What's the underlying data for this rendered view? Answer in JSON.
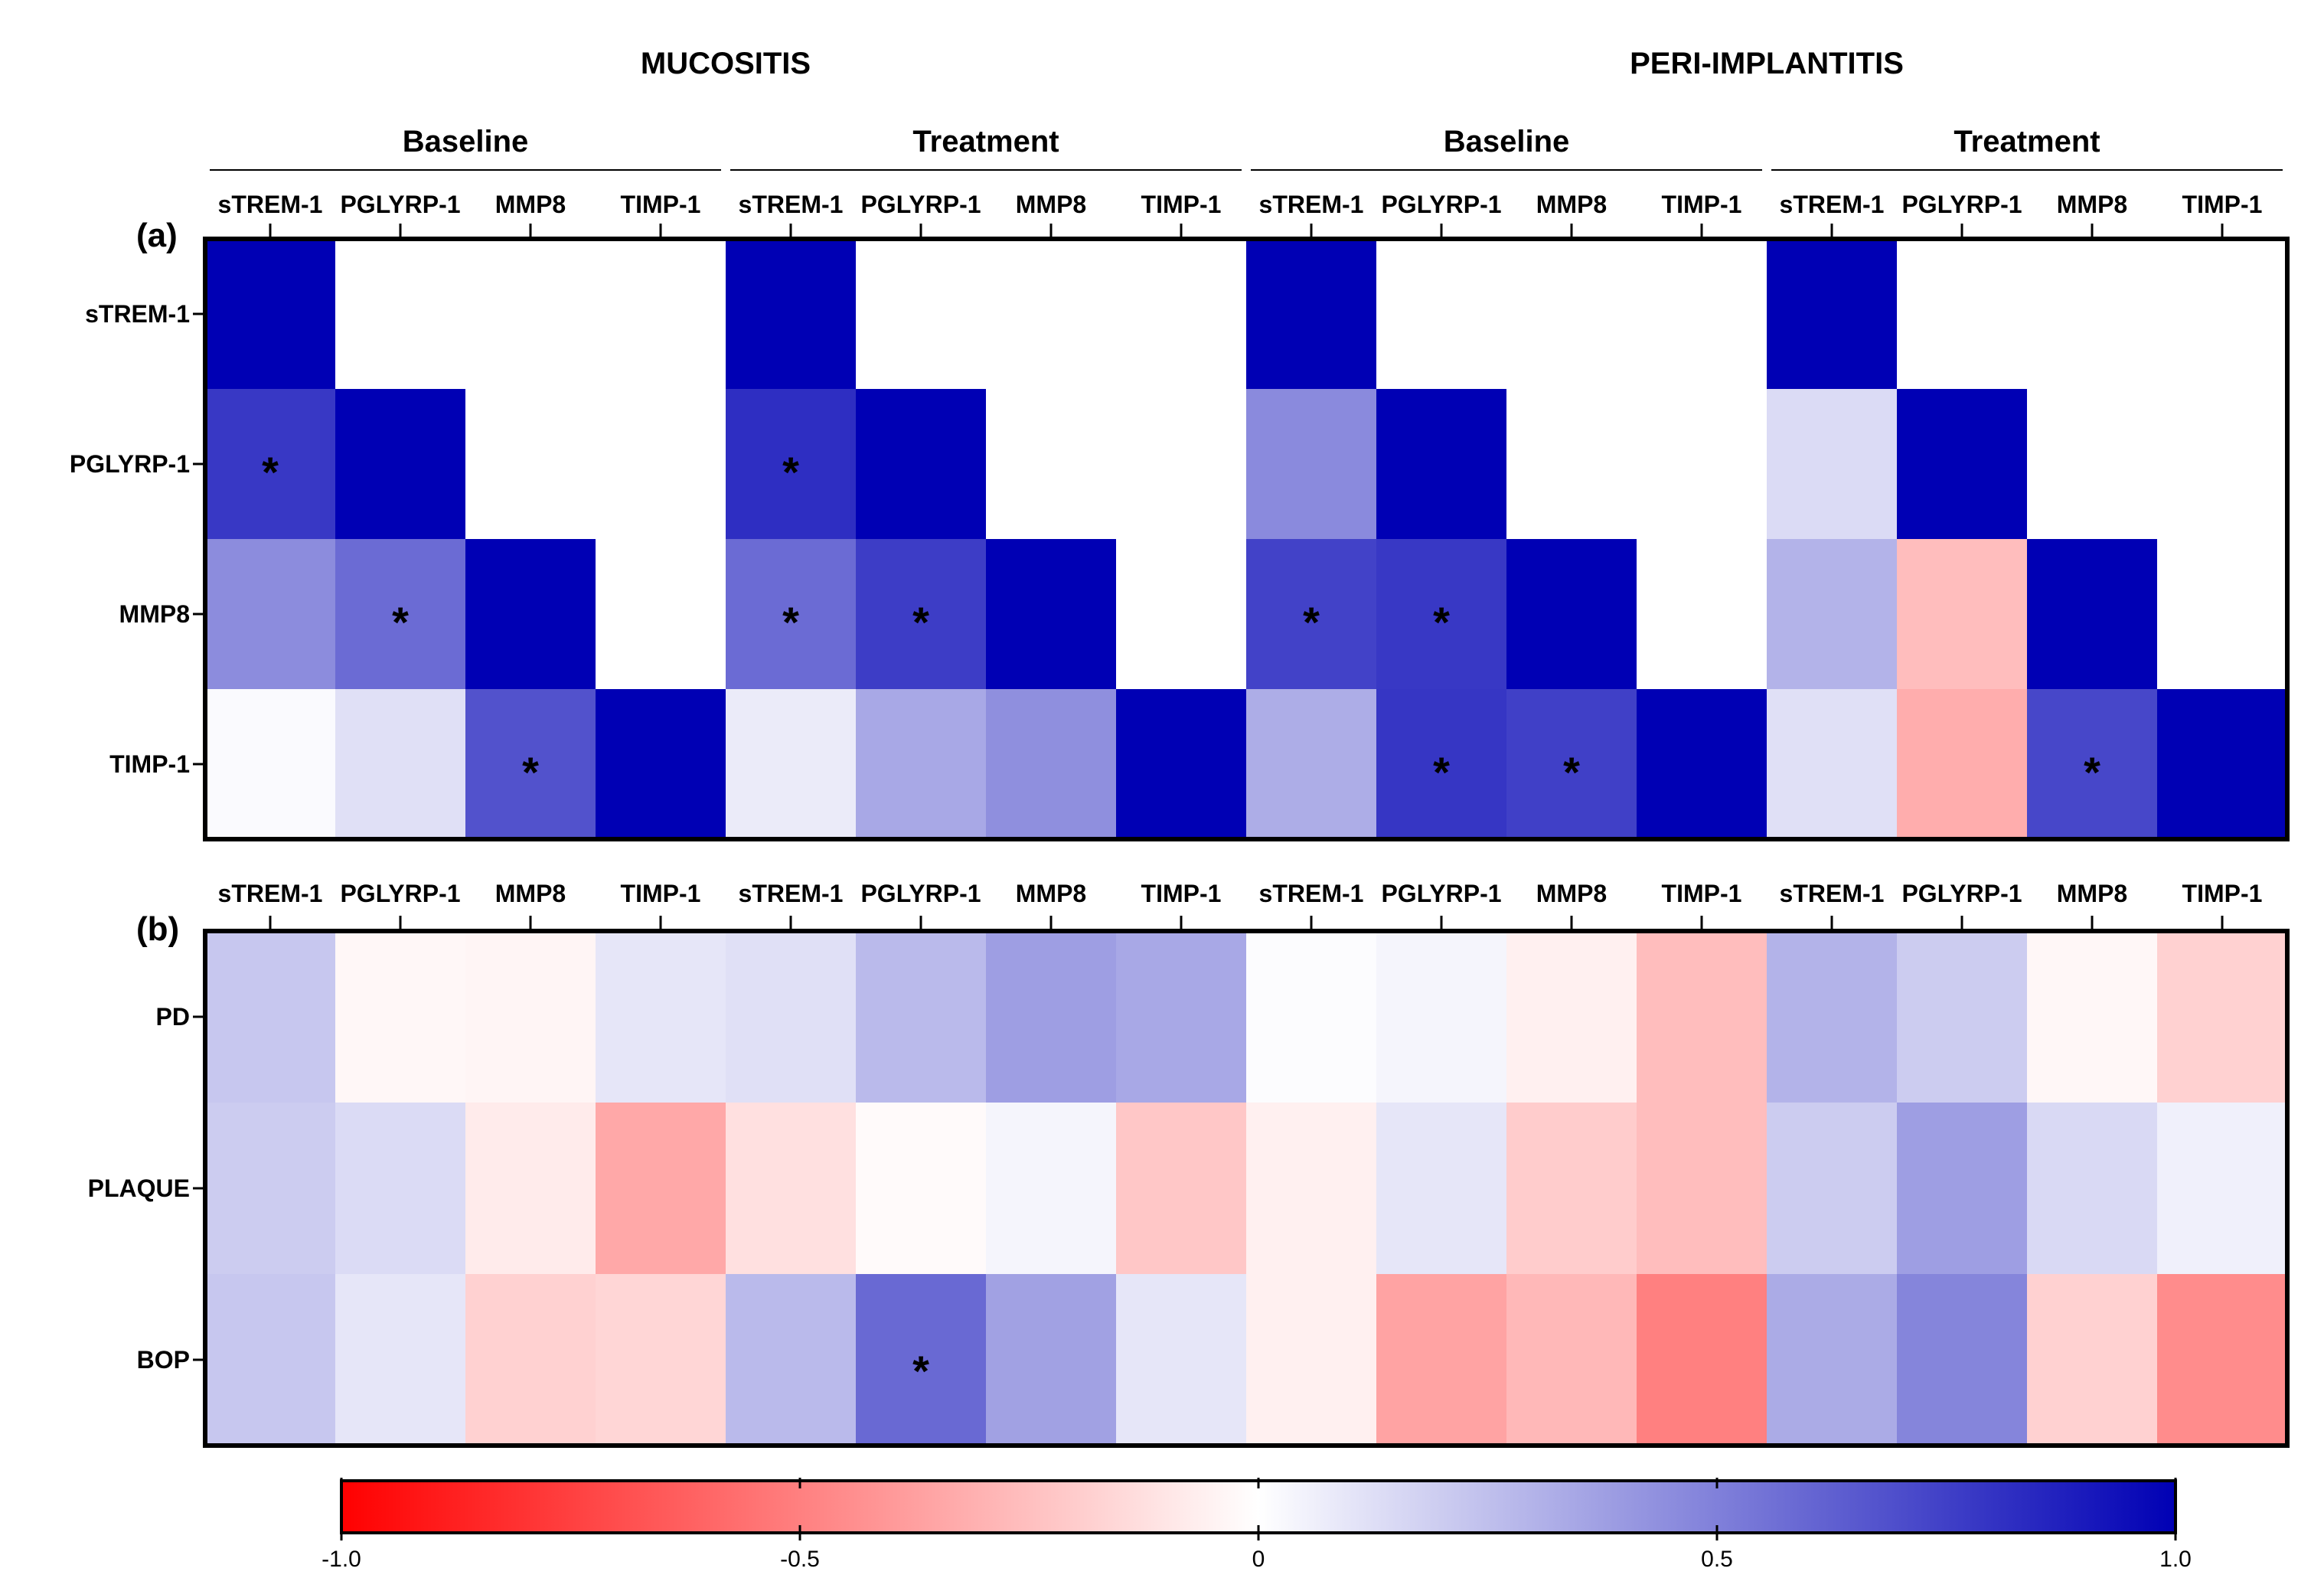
{
  "chart_data": [
    {
      "type": "heatmap",
      "panel_label": "(a)",
      "group_titles": [
        "MUCOSITIS",
        "PERI-IMPLANTITIS"
      ],
      "subgroups": [
        "Baseline",
        "Treatment",
        "Baseline",
        "Treatment"
      ],
      "columns": [
        "sTREM-1",
        "PGLYRP-1",
        "MMP8",
        "TIMP-1"
      ],
      "rows": [
        "sTREM-1",
        "PGLYRP-1",
        "MMP8",
        "TIMP-1"
      ],
      "blocks": [
        {
          "group": "MUCOSITIS",
          "subgroup": "Baseline",
          "values": [
            [
              1.0,
              null,
              null,
              null
            ],
            [
              0.78,
              1.0,
              null,
              null
            ],
            [
              0.45,
              0.58,
              1.0,
              null
            ],
            [
              0.02,
              0.12,
              0.68,
              1.0
            ]
          ],
          "significant": [
            [
              false,
              false,
              false,
              false
            ],
            [
              true,
              false,
              false,
              false
            ],
            [
              false,
              true,
              false,
              false
            ],
            [
              false,
              false,
              true,
              false
            ]
          ]
        },
        {
          "group": "MUCOSITIS",
          "subgroup": "Treatment",
          "values": [
            [
              1.0,
              null,
              null,
              null
            ],
            [
              0.82,
              1.0,
              null,
              null
            ],
            [
              0.58,
              0.76,
              1.0,
              null
            ],
            [
              0.08,
              0.34,
              0.44,
              1.0
            ]
          ],
          "significant": [
            [
              false,
              false,
              false,
              false
            ],
            [
              true,
              false,
              false,
              false
            ],
            [
              true,
              true,
              false,
              false
            ],
            [
              false,
              false,
              false,
              false
            ]
          ]
        },
        {
          "group": "PERI-IMPLANTITIS",
          "subgroup": "Baseline",
          "values": [
            [
              1.0,
              null,
              null,
              null
            ],
            [
              0.46,
              1.0,
              null,
              null
            ],
            [
              0.74,
              0.78,
              1.0,
              null
            ],
            [
              0.32,
              0.79,
              0.75,
              1.0
            ]
          ],
          "significant": [
            [
              false,
              false,
              false,
              false
            ],
            [
              false,
              false,
              false,
              false
            ],
            [
              true,
              true,
              false,
              false
            ],
            [
              false,
              true,
              true,
              false
            ]
          ]
        },
        {
          "group": "PERI-IMPLANTITIS",
          "subgroup": "Treatment",
          "values": [
            [
              1.0,
              null,
              null,
              null
            ],
            [
              0.14,
              1.0,
              null,
              null
            ],
            [
              0.3,
              -0.26,
              1.0,
              null
            ],
            [
              0.12,
              -0.32,
              0.72,
              1.0
            ]
          ],
          "significant": [
            [
              false,
              false,
              false,
              false
            ],
            [
              false,
              false,
              false,
              false
            ],
            [
              false,
              false,
              false,
              false
            ],
            [
              false,
              false,
              true,
              false
            ]
          ]
        }
      ]
    },
    {
      "type": "heatmap",
      "panel_label": "(b)",
      "columns": [
        "sTREM-1",
        "PGLYRP-1",
        "MMP8",
        "TIMP-1"
      ],
      "rows": [
        "PD",
        "PLAQUE",
        "BOP"
      ],
      "blocks": [
        {
          "group": "MUCOSITIS",
          "subgroup": "Baseline",
          "values": [
            [
              0.22,
              -0.03,
              -0.04,
              0.1
            ],
            [
              0.2,
              0.14,
              -0.08,
              -0.34
            ],
            [
              0.22,
              0.1,
              -0.18,
              -0.16
            ]
          ],
          "significant": [
            [
              false,
              false,
              false,
              false
            ],
            [
              false,
              false,
              false,
              false
            ],
            [
              false,
              false,
              false,
              false
            ]
          ]
        },
        {
          "group": "MUCOSITIS",
          "subgroup": "Treatment",
          "values": [
            [
              0.12,
              0.27,
              0.38,
              0.34
            ],
            [
              -0.12,
              -0.02,
              0.04,
              -0.22
            ],
            [
              0.27,
              0.59,
              0.37,
              0.1
            ]
          ],
          "significant": [
            [
              false,
              false,
              false,
              false
            ],
            [
              false,
              false,
              false,
              false
            ],
            [
              false,
              true,
              false,
              false
            ]
          ]
        },
        {
          "group": "PERI-IMPLANTITIS",
          "subgroup": "Baseline",
          "values": [
            [
              0.01,
              0.04,
              -0.06,
              -0.26
            ],
            [
              -0.06,
              0.1,
              -0.2,
              -0.26
            ],
            [
              -0.06,
              -0.36,
              -0.28,
              -0.5
            ]
          ],
          "significant": [
            [
              false,
              false,
              false,
              false
            ],
            [
              false,
              false,
              false,
              false
            ],
            [
              false,
              false,
              false,
              false
            ]
          ]
        },
        {
          "group": "PERI-IMPLANTITIS",
          "subgroup": "Treatment",
          "values": [
            [
              0.3,
              0.2,
              -0.03,
              -0.18
            ],
            [
              0.2,
              0.38,
              0.15,
              0.06
            ],
            [
              0.33,
              0.48,
              -0.18,
              -0.45
            ]
          ],
          "significant": [
            [
              false,
              false,
              false,
              false
            ],
            [
              false,
              false,
              false,
              false
            ],
            [
              false,
              false,
              false,
              false
            ]
          ]
        }
      ]
    }
  ],
  "colorbar": {
    "min": -1.0,
    "max": 1.0,
    "ticks": [
      -1.0,
      -0.5,
      0,
      0.5,
      1.0
    ],
    "tick_labels": [
      "-1.0",
      "-0.5",
      "0",
      "0.5",
      "1.0"
    ],
    "low_color": "#ff0000",
    "mid_color": "#ffffff",
    "high_color": "#0000b4"
  },
  "significance_marker": "*"
}
